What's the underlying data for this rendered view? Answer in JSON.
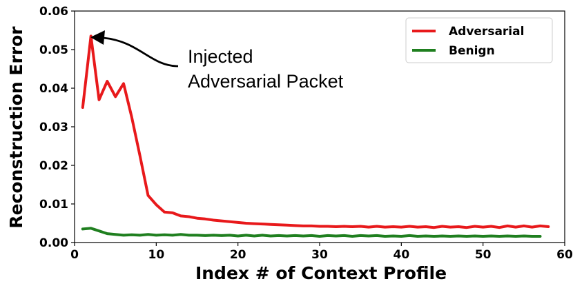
{
  "chart_data": {
    "type": "line",
    "xlabel": "Index # of Context Profile",
    "ylabel": "Reconstruction Error",
    "xlim": [
      0,
      60
    ],
    "ylim": [
      0,
      0.06
    ],
    "xticks": [
      "0",
      "10",
      "20",
      "30",
      "40",
      "50",
      "60"
    ],
    "yticks": [
      "0.00",
      "0.01",
      "0.02",
      "0.03",
      "0.04",
      "0.05",
      "0.06"
    ],
    "grid": false,
    "legend_position": "top-right",
    "annotation": {
      "lines": [
        "Injected",
        "Adversarial Packet"
      ],
      "target": [
        2,
        0.0535
      ]
    },
    "series": [
      {
        "name": "Adversarial",
        "color": "#e8191b",
        "x": [
          1,
          2,
          3,
          4,
          5,
          6,
          7,
          8,
          9,
          10,
          11,
          12,
          13,
          14,
          15,
          16,
          17,
          18,
          19,
          20,
          21,
          22,
          23,
          24,
          25,
          26,
          27,
          28,
          29,
          30,
          31,
          32,
          33,
          34,
          35,
          36,
          37,
          38,
          39,
          40,
          41,
          42,
          43,
          44,
          45,
          46,
          47,
          48,
          49,
          50,
          51,
          52,
          53,
          54,
          55,
          56,
          57,
          58
        ],
        "values": [
          0.035,
          0.0535,
          0.037,
          0.0418,
          0.0378,
          0.0412,
          0.0325,
          0.0225,
          0.0122,
          0.0098,
          0.0079,
          0.0077,
          0.0069,
          0.0067,
          0.0063,
          0.0061,
          0.0058,
          0.0056,
          0.0054,
          0.0052,
          0.005,
          0.0049,
          0.0048,
          0.0047,
          0.0046,
          0.0045,
          0.0044,
          0.0043,
          0.0043,
          0.0042,
          0.0042,
          0.0041,
          0.0042,
          0.0041,
          0.0042,
          0.004,
          0.0042,
          0.004,
          0.0041,
          0.004,
          0.0042,
          0.004,
          0.0041,
          0.0039,
          0.0042,
          0.004,
          0.0041,
          0.0039,
          0.0042,
          0.004,
          0.0042,
          0.0039,
          0.0043,
          0.004,
          0.0043,
          0.004,
          0.0043,
          0.0041
        ]
      },
      {
        "name": "Benign",
        "color": "#1f7f1f",
        "x": [
          1,
          2,
          3,
          4,
          5,
          6,
          7,
          8,
          9,
          10,
          11,
          12,
          13,
          14,
          15,
          16,
          17,
          18,
          19,
          20,
          21,
          22,
          23,
          24,
          25,
          26,
          27,
          28,
          29,
          30,
          31,
          32,
          33,
          34,
          35,
          36,
          37,
          38,
          39,
          40,
          41,
          42,
          43,
          44,
          45,
          46,
          47,
          48,
          49,
          50,
          51,
          52,
          53,
          54,
          55,
          56,
          57
        ],
        "values": [
          0.0035,
          0.0037,
          0.003,
          0.0023,
          0.0021,
          0.0019,
          0.002,
          0.0019,
          0.0021,
          0.0019,
          0.002,
          0.0019,
          0.0021,
          0.0019,
          0.0019,
          0.0018,
          0.0019,
          0.0018,
          0.0019,
          0.0017,
          0.0019,
          0.0017,
          0.0019,
          0.0017,
          0.0018,
          0.0017,
          0.0018,
          0.0017,
          0.0018,
          0.0016,
          0.0018,
          0.0017,
          0.0018,
          0.0016,
          0.0018,
          0.0017,
          0.0018,
          0.0016,
          0.0017,
          0.0016,
          0.0018,
          0.0016,
          0.0017,
          0.0016,
          0.0017,
          0.0016,
          0.0017,
          0.0016,
          0.0017,
          0.0016,
          0.0017,
          0.0016,
          0.0017,
          0.0016,
          0.0017,
          0.0016,
          0.0016
        ]
      }
    ]
  }
}
